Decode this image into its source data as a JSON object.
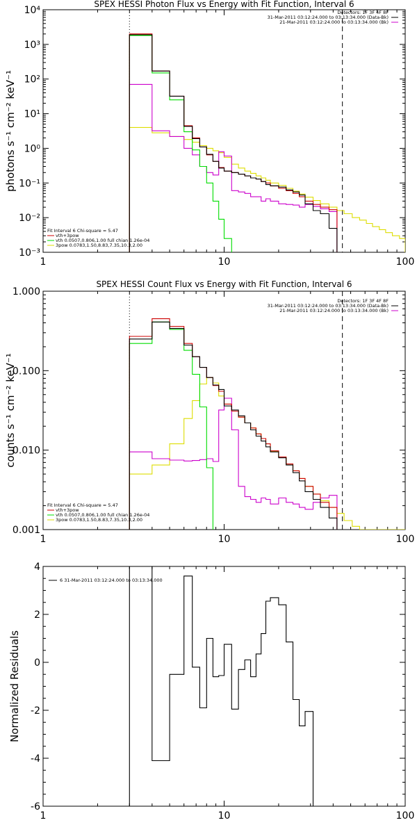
{
  "chart_data": [
    {
      "type": "line",
      "title": "SPEX HESSI Photon Flux vs Energy with Fit Function, Interval 6",
      "xlabel": "",
      "ylabel": "photons s⁻¹ cm⁻² keV⁻¹",
      "xscale": "log",
      "yscale": "log",
      "xlim": [
        1,
        100
      ],
      "ylim": [
        0.001,
        10000
      ],
      "x_ticks": [
        1,
        10,
        100
      ],
      "x_tick_labels": [
        "1",
        "10",
        "100"
      ],
      "y_ticks": [
        0.001,
        0.01,
        0.1,
        1,
        10,
        100,
        1000,
        10000
      ],
      "y_tick_labels": [
        "10⁻³",
        "10⁻²",
        "10⁻¹",
        "10⁰",
        "10¹",
        "10²",
        "10³",
        "10⁴"
      ],
      "legend_upper": [
        "Detectors: 1F 3F 4F 8F",
        "31-Mar-2011 03:12:24.000 to 03:13:34.000 (Data-Bk)",
        "21-Mar-2011 03:12:24.000 to 03:13:34.000 (Bk)"
      ],
      "legend_lower": [
        "Fit Interval 6   Chi-square = 5.47",
        "vth+3pow",
        "vth 0.0507,0.806,1.00  full chian 1.26e-04",
        "3pow 0.0783,1.50,8.83,7.35,10.3,2.00"
      ],
      "fit_range_keV": [
        3.0,
        45.0
      ],
      "bin_edges": [
        3.0,
        4.0,
        5.0,
        6.0,
        6.67,
        7.33,
        8.0,
        8.67,
        9.33,
        10.0,
        11.0,
        12.0,
        13.0,
        14.0,
        15.0,
        16.0,
        17.0,
        18.0,
        20.0,
        22.0,
        24.0,
        26.0,
        28.0,
        31.0,
        34.0,
        38.0,
        42.0,
        46.0,
        51.0,
        56.0,
        61.0,
        66.0,
        72.0,
        78.0,
        85.0,
        93.0,
        100.0
      ],
      "series": [
        {
          "name": "31-Mar-2011 03:12:24.000 to 03:13:34.000 (Data-Bk)",
          "color": "#000000",
          "values": [
            1900,
            170,
            32,
            4.3,
            1.9,
            1.1,
            0.67,
            0.42,
            0.27,
            0.22,
            0.2,
            0.18,
            0.16,
            0.14,
            0.13,
            0.11,
            0.09,
            0.083,
            0.076,
            0.063,
            0.055,
            0.045,
            0.025,
            0.016,
            0.013,
            0.0049
          ]
        },
        {
          "name": "vth+3pow",
          "color": "#cc0000",
          "values": [
            2000,
            170,
            32,
            4.5,
            2.0,
            1.1,
            0.65,
            0.42,
            0.28,
            0.22,
            0.2,
            0.18,
            0.16,
            0.14,
            0.13,
            0.11,
            0.1,
            0.082,
            0.07,
            0.06,
            0.05,
            0.04,
            0.03,
            0.024,
            0.02,
            0.017
          ]
        },
        {
          "name": "vth",
          "color": "#00dd00",
          "values": [
            1800,
            150,
            25,
            3.0,
            0.9,
            0.3,
            0.1,
            0.03,
            0.009,
            0.0025
          ]
        },
        {
          "name": "3pow",
          "color": "#dddd00",
          "values": [
            4.0,
            2.8,
            2.2,
            1.8,
            1.5,
            1.2,
            1.0,
            0.85,
            0.75,
            0.55,
            0.35,
            0.27,
            0.22,
            0.19,
            0.16,
            0.14,
            0.12,
            0.1,
            0.085,
            0.07,
            0.058,
            0.048,
            0.039,
            0.031,
            0.025,
            0.02,
            0.016,
            0.013,
            0.01,
            0.0085,
            0.0068,
            0.0055,
            0.0045,
            0.0037,
            0.003,
            0.0025
          ]
        },
        {
          "name": "21-Mar-2011 03:12:24.000 to 03:13:34.000 (Bk)",
          "color": "#cc00cc",
          "values": [
            70,
            3.2,
            2.2,
            1.0,
            0.65,
            0.3,
            0.2,
            0.17,
            0.8,
            0.6,
            0.06,
            0.055,
            0.05,
            0.04,
            0.04,
            0.03,
            0.035,
            0.03,
            0.025,
            0.024,
            0.023,
            0.02,
            0.024,
            0.021,
            0.018,
            0.015
          ]
        }
      ]
    },
    {
      "type": "line",
      "title": "SPEX HESSI Count Flux vs Energy with Fit Function, Interval 6",
      "xlabel": "",
      "ylabel": "counts s⁻¹ cm⁻² keV⁻¹",
      "xscale": "log",
      "yscale": "log",
      "xlim": [
        1,
        100
      ],
      "ylim": [
        0.001,
        1.0
      ],
      "x_ticks": [
        1,
        10,
        100
      ],
      "x_tick_labels": [
        "1",
        "10",
        "100"
      ],
      "y_ticks": [
        0.001,
        0.01,
        0.1,
        1.0
      ],
      "y_tick_labels": [
        "0.001",
        "0.010",
        "0.100",
        "1.000"
      ],
      "legend_upper": [
        "Detectors: 1F 3F 4F 8F",
        "31-Mar-2011 03:12:24.000 to 03:13:34.000 (Data-Bk)",
        "21-Mar-2011 03:12:24.000 to 03:13:34.000 (Bk)"
      ],
      "legend_lower": [
        "Fit Interval 6   Chi-square = 5.47",
        "vth+3pow",
        "vth 0.0507,0.806,1.00  full chian 1.26e-04",
        "3pow 0.0783,1.50,8.83,7.35,10.3,2.00"
      ],
      "fit_range_keV": [
        3.0,
        45.0
      ],
      "bin_edges": [
        3.0,
        4.0,
        5.0,
        6.0,
        6.67,
        7.33,
        8.0,
        8.67,
        9.33,
        10.0,
        11.0,
        12.0,
        13.0,
        14.0,
        15.0,
        16.0,
        17.0,
        18.0,
        20.0,
        22.0,
        24.0,
        26.0,
        28.0,
        31.0,
        34.0,
        38.0,
        42.0,
        46.0,
        51.0,
        56.0,
        61.0,
        66.0,
        72.0,
        78.0,
        85.0,
        93.0,
        100.0
      ],
      "series": [
        {
          "name": "31-Mar-2011 03:12:24.000 to 03:13:34.000 (Data-Bk)",
          "color": "#000000",
          "values": [
            0.25,
            0.41,
            0.34,
            0.21,
            0.15,
            0.11,
            0.082,
            0.066,
            0.058,
            0.036,
            0.032,
            0.027,
            0.022,
            0.018,
            0.015,
            0.013,
            0.011,
            0.0095,
            0.008,
            0.0065,
            0.0052,
            0.0041,
            0.003,
            0.0024,
            0.0019,
            0.0014
          ]
        },
        {
          "name": "vth+3pow",
          "color": "#cc0000",
          "values": [
            0.27,
            0.45,
            0.36,
            0.22,
            0.15,
            0.11,
            0.082,
            0.065,
            0.055,
            0.038,
            0.031,
            0.026,
            0.022,
            0.019,
            0.016,
            0.014,
            0.012,
            0.0098,
            0.0082,
            0.0067,
            0.0055,
            0.0044,
            0.0035,
            0.0028,
            0.0022,
            0.0019
          ]
        },
        {
          "name": "vth",
          "color": "#00dd00",
          "values": [
            0.22,
            0.41,
            0.33,
            0.18,
            0.09,
            0.035,
            0.006
          ]
        },
        {
          "name": "3pow",
          "color": "#dddd00",
          "values": [
            0.005,
            0.0065,
            0.012,
            0.025,
            0.042,
            0.068,
            0.082,
            0.07,
            0.048,
            0.038,
            0.031,
            0.026,
            0.022,
            0.019,
            0.016,
            0.014,
            0.012,
            0.0097,
            0.0082,
            0.0067,
            0.0055,
            0.0044,
            0.0035,
            0.0028,
            0.0023,
            0.0019,
            0.0016,
            0.0013,
            0.0011,
            0.001,
            0.001,
            0.001,
            0.001,
            0.001,
            0.001,
            0.001
          ]
        },
        {
          "name": "21-Mar-2011 03:12:24.000 to 03:13:34.000 (Bk)",
          "color": "#cc00cc",
          "values": [
            0.0095,
            0.0078,
            0.0075,
            0.0073,
            0.0074,
            0.0076,
            0.0078,
            0.0072,
            0.032,
            0.045,
            0.018,
            0.0035,
            0.0026,
            0.0024,
            0.0022,
            0.0025,
            0.0024,
            0.0021,
            0.0025,
            0.0022,
            0.0021,
            0.0019,
            0.0018,
            0.0022,
            0.0025,
            0.0027
          ]
        }
      ]
    },
    {
      "type": "line",
      "title": "",
      "xlabel": "",
      "ylabel": "Normalized Residuals",
      "xscale": "log",
      "yscale": "linear",
      "xlim": [
        1,
        100
      ],
      "ylim": [
        -6,
        4
      ],
      "x_ticks": [
        1,
        10,
        100
      ],
      "x_tick_labels": [
        "1",
        "10",
        "100"
      ],
      "y_ticks": [
        -6,
        -4,
        -2,
        0,
        2,
        4
      ],
      "y_tick_labels": [
        "-6",
        "-4",
        "-2",
        "0",
        "2",
        "4"
      ],
      "legend": [
        "6  31-Mar-2011 03:12:24.000 to 03:13:34.000"
      ],
      "bin_edges": [
        3.0,
        4.0,
        5.0,
        6.0,
        6.67,
        7.33,
        8.0,
        8.67,
        9.33,
        10.0,
        11.0,
        12.0,
        13.0,
        14.0,
        15.0,
        16.0,
        17.0,
        18.0,
        20.0,
        22.0,
        24.0,
        26.0,
        28.0,
        31.0,
        34.0,
        38.0,
        42.0,
        46.0
      ],
      "series": [
        {
          "name": "6  31-Mar-2011 03:12:24.000 to 03:13:34.000",
          "color": "#000000",
          "values": [
            4.0,
            -4.1,
            -0.5,
            3.6,
            -0.2,
            -1.9,
            1.0,
            -0.6,
            -0.55,
            0.75,
            -1.95,
            -0.3,
            0.1,
            -0.6,
            0.35,
            1.2,
            2.55,
            2.7,
            2.4,
            0.85,
            -1.55,
            -2.65,
            -2.05
          ]
        }
      ]
    }
  ]
}
